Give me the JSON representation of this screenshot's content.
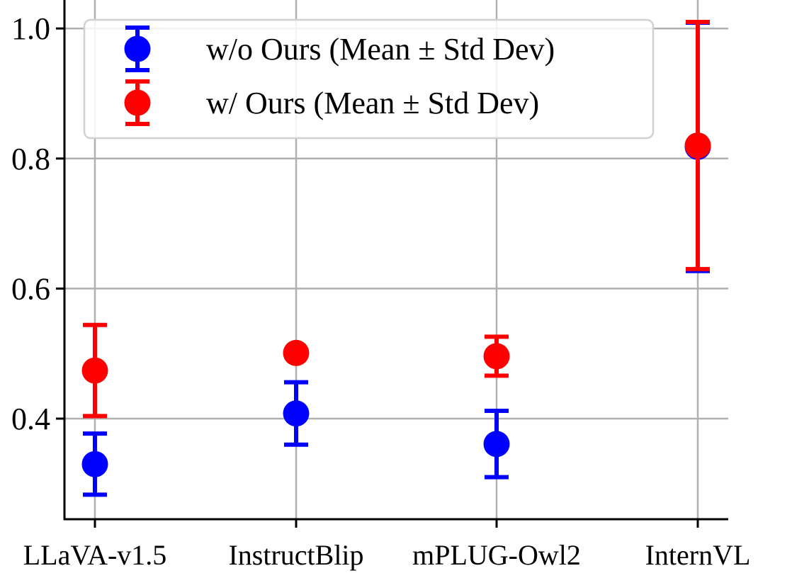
{
  "chart_data": {
    "type": "scatter",
    "title": "",
    "xlabel": "",
    "ylabel": "",
    "categories": [
      "LLaVA-v1.5",
      "InstructBlip",
      "mPLUG-Owl2",
      "InternVL"
    ],
    "ylim": [
      0.25,
      1.05
    ],
    "yticks": [
      0.4,
      0.6,
      0.8,
      1.0
    ],
    "ytick_labels": [
      "0.4",
      "0.6",
      "0.8",
      "1.0"
    ],
    "grid": true,
    "legend_position": "top-left",
    "series": [
      {
        "name": "w/o Ours (Mean ± Std Dev)",
        "color": "#0000ff",
        "means": [
          0.33,
          0.408,
          0.361,
          0.818
        ],
        "stds": [
          0.047,
          0.048,
          0.051,
          0.191
        ]
      },
      {
        "name": "w/ Ours (Mean ± Std Dev)",
        "color": "#ff0000",
        "means": [
          0.474,
          0.501,
          0.496,
          0.82
        ],
        "stds": [
          0.07,
          0.0,
          0.03,
          0.19
        ]
      }
    ]
  }
}
